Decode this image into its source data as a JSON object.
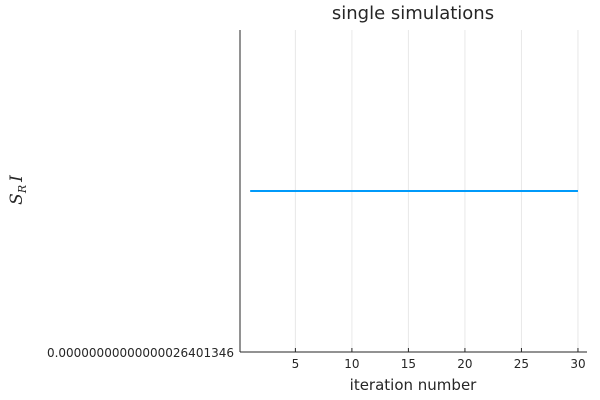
{
  "chart_data": {
    "type": "line",
    "title": "single simulations",
    "xlabel": "iteration number",
    "ylabel": {
      "base": "S",
      "subscript": "R",
      "suffix": "I"
    },
    "x_ticks": [
      5,
      10,
      15,
      20,
      25,
      30
    ],
    "x_tick_labels": [
      "5",
      "10",
      "15",
      "20",
      "25",
      "30"
    ],
    "y_tick_labels": [
      "0.00000000000000026401346"
    ],
    "xlim": [
      0.1,
      30.8
    ],
    "grid": "x",
    "legend": "none",
    "series": [
      {
        "color": "#009AFA",
        "x": [
          1,
          2,
          3,
          4,
          5,
          6,
          7,
          8,
          9,
          10,
          11,
          12,
          13,
          14,
          15,
          16,
          17,
          18,
          19,
          20,
          21,
          22,
          23,
          24,
          25,
          26,
          27,
          28,
          29,
          30
        ],
        "y": [
          2.6401346e-16,
          2.6401346e-16,
          2.6401346e-16,
          2.6401346e-16,
          2.6401346e-16,
          2.6401346e-16,
          2.6401346e-16,
          2.6401346e-16,
          2.6401346e-16,
          2.6401346e-16,
          2.6401346e-16,
          2.6401346e-16,
          2.6401346e-16,
          2.6401346e-16,
          2.6401346e-16,
          2.6401346e-16,
          2.6401346e-16,
          2.6401346e-16,
          2.6401346e-16,
          2.6401346e-16,
          2.6401346e-16,
          2.6401346e-16,
          2.6401346e-16,
          2.6401346e-16,
          2.6401346e-16,
          2.6401346e-16,
          2.6401346e-16,
          2.6401346e-16,
          2.6401346e-16,
          2.6401346e-16
        ]
      }
    ]
  }
}
